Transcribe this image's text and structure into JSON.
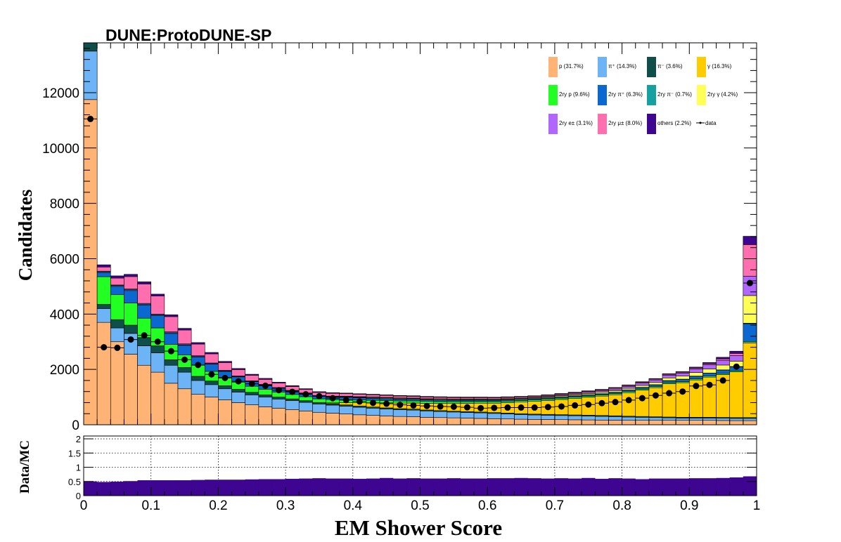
{
  "chart_data": [
    {
      "type": "stacked-histogram",
      "title": "DUNE:ProtoDUNE-SP",
      "xlabel": "EM Shower Score",
      "ylabel": "Candidates",
      "xlim": [
        0,
        1
      ],
      "ylim": [
        0,
        13800
      ],
      "yticks": [
        0,
        2000,
        4000,
        6000,
        8000,
        10000,
        12000
      ],
      "xticks": [
        0,
        0.1,
        0.2,
        0.3,
        0.4,
        0.5,
        0.6,
        0.7,
        0.8,
        0.9,
        1
      ],
      "bins": 50,
      "legend_position": "top-right",
      "grid": false,
      "series": [
        {
          "name": "p (31.7%)",
          "color": "#ffb375",
          "values": [
            11750,
            3700,
            3000,
            2550,
            2150,
            1900,
            1500,
            1300,
            1100,
            1000,
            900,
            800,
            720,
            650,
            600,
            550,
            500,
            450,
            420,
            390,
            360,
            340,
            320,
            300,
            290,
            270,
            260,
            250,
            240,
            230,
            220,
            210,
            200,
            195,
            190,
            185,
            180,
            175,
            170,
            165,
            160,
            160,
            160,
            160,
            160,
            160,
            160,
            155,
            150,
            150
          ]
        },
        {
          "name": "π⁺ (14.3%)",
          "color": "#6cb4f5",
          "values": [
            1750,
            500,
            500,
            750,
            700,
            700,
            650,
            600,
            500,
            450,
            400,
            380,
            360,
            350,
            330,
            320,
            310,
            300,
            290,
            280,
            270,
            260,
            250,
            245,
            240,
            230,
            220,
            210,
            205,
            200,
            190,
            180,
            170,
            160,
            155,
            150,
            145,
            140,
            135,
            130,
            120,
            110,
            100,
            90,
            80,
            80,
            80,
            80,
            80,
            80
          ]
        },
        {
          "name": "π⁻ (3.6%)",
          "color": "#0e4f49",
          "values": [
            300,
            150,
            300,
            300,
            300,
            250,
            200,
            170,
            150,
            130,
            110,
            100,
            90,
            80,
            70,
            65,
            60,
            55,
            50,
            48,
            45,
            42,
            40,
            38,
            36,
            34,
            32,
            30,
            30,
            30,
            30,
            30,
            30,
            30,
            30,
            30,
            30,
            30,
            30,
            30,
            30,
            30,
            30,
            30,
            30,
            30,
            30,
            30,
            30,
            30
          ]
        },
        {
          "name": "γ (16.3%)",
          "color": "#ffcc00",
          "values": [
            0,
            0,
            0,
            0,
            0,
            0,
            0,
            0,
            0,
            0,
            0,
            0,
            0,
            0,
            0,
            0,
            0,
            0,
            30,
            80,
            120,
            150,
            180,
            200,
            220,
            240,
            260,
            280,
            300,
            320,
            340,
            380,
            420,
            460,
            500,
            550,
            600,
            650,
            700,
            760,
            850,
            950,
            1050,
            1200,
            1250,
            1350,
            1450,
            1550,
            1650,
            2700
          ]
        },
        {
          "name": "2ry p (9.6%)",
          "color": "#22ff22",
          "values": [
            0,
            1000,
            900,
            800,
            700,
            650,
            550,
            450,
            400,
            350,
            300,
            260,
            220,
            200,
            180,
            160,
            145,
            130,
            120,
            110,
            100,
            92,
            85,
            80,
            75,
            70,
            66,
            62,
            60,
            58,
            56,
            54,
            52,
            50,
            48,
            46,
            44,
            42,
            40,
            40,
            40,
            40,
            40,
            40,
            40,
            40,
            40,
            40,
            40,
            40
          ]
        },
        {
          "name": "2ry π⁺ (6.3%)",
          "color": "#0b68d0",
          "values": [
            0,
            150,
            300,
            450,
            480,
            440,
            400,
            350,
            300,
            260,
            220,
            190,
            165,
            150,
            135,
            120,
            110,
            100,
            92,
            85,
            78,
            72,
            66,
            60,
            56,
            52,
            50,
            48,
            46,
            45,
            44,
            43,
            42,
            42,
            42,
            42,
            42,
            42,
            42,
            45,
            50,
            55,
            60,
            70,
            80,
            90,
            100,
            120,
            140,
            650
          ]
        },
        {
          "name": "2ry π⁻ (0.7%)",
          "color": "#16a0a0",
          "values": [
            0,
            30,
            30,
            30,
            30,
            30,
            28,
            24,
            20,
            18,
            16,
            14,
            12,
            11,
            10,
            10,
            9,
            9,
            8,
            8,
            8,
            8,
            8,
            8,
            8,
            8,
            8,
            8,
            8,
            8,
            8,
            8,
            8,
            8,
            8,
            8,
            8,
            8,
            8,
            8,
            8,
            8,
            8,
            8,
            8,
            8,
            8,
            8,
            8,
            20
          ]
        },
        {
          "name": "2ry γ (4.2%)",
          "color": "#ffff55",
          "values": [
            0,
            0,
            0,
            0,
            0,
            0,
            0,
            0,
            0,
            0,
            0,
            0,
            0,
            0,
            0,
            0,
            0,
            0,
            10,
            15,
            20,
            25,
            25,
            25,
            25,
            25,
            25,
            25,
            25,
            25,
            25,
            25,
            25,
            25,
            30,
            35,
            40,
            45,
            50,
            55,
            60,
            70,
            80,
            95,
            110,
            130,
            150,
            175,
            200,
            1000
          ]
        },
        {
          "name": "2ry e± (3.1%)",
          "color": "#b166ff",
          "values": [
            0,
            20,
            20,
            25,
            25,
            30,
            30,
            30,
            25,
            25,
            20,
            20,
            20,
            20,
            20,
            18,
            16,
            15,
            15,
            15,
            15,
            15,
            15,
            15,
            15,
            15,
            15,
            15,
            15,
            15,
            15,
            15,
            15,
            15,
            20,
            25,
            30,
            40,
            50,
            60,
            70,
            80,
            90,
            100,
            110,
            130,
            150,
            170,
            200,
            700
          ]
        },
        {
          "name": "2ry μ± (8.0%)",
          "color": "#ff6fb0",
          "values": [
            0,
            150,
            250,
            450,
            700,
            650,
            550,
            500,
            420,
            330,
            280,
            230,
            200,
            180,
            160,
            140,
            125,
            110,
            100,
            92,
            85,
            78,
            72,
            67,
            63,
            60,
            57,
            55,
            52,
            50,
            48,
            46,
            44,
            42,
            40,
            38,
            36,
            35,
            34,
            33,
            32,
            32,
            32,
            32,
            32,
            35,
            40,
            50,
            80,
            1140
          ]
        },
        {
          "name": "others (2.2%)",
          "color": "#3d0590",
          "values": [
            0,
            80,
            80,
            80,
            80,
            70,
            65,
            60,
            55,
            50,
            45,
            40,
            38,
            35,
            32,
            30,
            28,
            26,
            24,
            22,
            20,
            20,
            20,
            20,
            20,
            20,
            20,
            20,
            20,
            20,
            20,
            20,
            20,
            20,
            20,
            20,
            20,
            20,
            20,
            20,
            20,
            20,
            20,
            20,
            20,
            30,
            40,
            60,
            80,
            300
          ]
        }
      ],
      "data_series": {
        "name": "data",
        "values": [
          11050,
          2800,
          2780,
          3080,
          3230,
          3000,
          2660,
          2350,
          2160,
          1820,
          1690,
          1570,
          1480,
          1410,
          1250,
          1190,
          1100,
          1030,
          960,
          890,
          840,
          790,
          760,
          720,
          700,
          680,
          660,
          650,
          630,
          600,
          610,
          620,
          620,
          620,
          640,
          660,
          700,
          730,
          780,
          820,
          890,
          960,
          1060,
          1140,
          1200,
          1400,
          1440,
          1600,
          2100,
          5120
        ]
      }
    },
    {
      "type": "ratio-histogram",
      "ylabel": "Data/MC",
      "xlabel": "EM Shower Score",
      "xlim": [
        0,
        1
      ],
      "ylim": [
        0,
        2.1
      ],
      "yticks": [
        0,
        0.5,
        1,
        1.5,
        2
      ],
      "xticks": [
        0,
        0.1,
        0.2,
        0.3,
        0.4,
        0.5,
        0.6,
        0.7,
        0.8,
        0.9,
        1
      ],
      "grid": true,
      "color": "#3d0590",
      "values": [
        0.5,
        0.48,
        0.49,
        0.51,
        0.54,
        0.54,
        0.54,
        0.54,
        0.55,
        0.56,
        0.56,
        0.56,
        0.57,
        0.58,
        0.58,
        0.59,
        0.6,
        0.61,
        0.6,
        0.6,
        0.59,
        0.6,
        0.62,
        0.6,
        0.61,
        0.6,
        0.6,
        0.61,
        0.6,
        0.6,
        0.61,
        0.61,
        0.62,
        0.61,
        0.6,
        0.61,
        0.6,
        0.62,
        0.59,
        0.61,
        0.6,
        0.58,
        0.6,
        0.6,
        0.6,
        0.61,
        0.61,
        0.62,
        0.64,
        0.68
      ]
    }
  ]
}
